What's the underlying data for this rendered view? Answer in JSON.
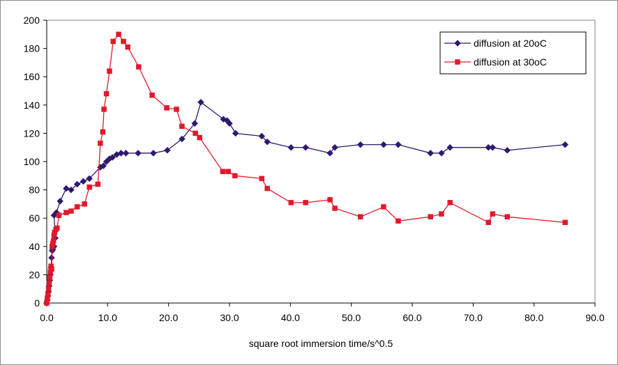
{
  "chart_data": {
    "type": "scatter",
    "title": "",
    "xlabel": "square root immersion time/s^0.5",
    "ylabel": "",
    "xlim": [
      0,
      90
    ],
    "ylim": [
      0,
      200
    ],
    "x_ticks": [
      "0.0",
      "10.0",
      "20.0",
      "30.0",
      "40.0",
      "50.0",
      "60.0",
      "70.0",
      "80.0",
      "90.0"
    ],
    "y_ticks": [
      "0",
      "20",
      "40",
      "60",
      "80",
      "100",
      "120",
      "140",
      "160",
      "180",
      "200"
    ],
    "grid": false,
    "legend_position": "top-right",
    "series": [
      {
        "name": "diffusion at 20oC",
        "color": "#2e1a6e",
        "marker": "diamond",
        "points": [
          [
            0,
            0
          ],
          [
            0.1,
            2
          ],
          [
            0.2,
            5
          ],
          [
            0.3,
            8
          ],
          [
            0.4,
            12
          ],
          [
            0.5,
            16
          ],
          [
            0.6,
            20
          ],
          [
            0.7,
            25
          ],
          [
            0.8,
            32
          ],
          [
            0.9,
            37
          ],
          [
            1.0,
            38
          ],
          [
            1.2,
            40
          ],
          [
            1.4,
            46
          ],
          [
            1.2,
            62
          ],
          [
            1.6,
            64
          ],
          [
            2.2,
            72
          ],
          [
            3.2,
            81
          ],
          [
            4,
            80
          ],
          [
            5,
            84
          ],
          [
            6,
            86
          ],
          [
            7,
            88
          ],
          [
            8.8,
            96
          ],
          [
            9.3,
            97
          ],
          [
            9.8,
            100
          ],
          [
            10.3,
            102
          ],
          [
            10.8,
            103
          ],
          [
            11.5,
            105
          ],
          [
            12.2,
            106
          ],
          [
            13,
            106
          ],
          [
            15,
            106
          ],
          [
            17.5,
            106
          ],
          [
            19.8,
            108
          ],
          [
            22.2,
            116
          ],
          [
            24.3,
            127
          ],
          [
            25.3,
            142
          ],
          [
            29,
            130
          ],
          [
            29.6,
            129
          ],
          [
            30,
            127
          ],
          [
            31,
            120
          ],
          [
            35.3,
            118
          ],
          [
            36.2,
            114
          ],
          [
            40.1,
            110
          ],
          [
            42.5,
            110
          ],
          [
            46.5,
            106
          ],
          [
            47.3,
            110
          ],
          [
            51.5,
            112
          ],
          [
            55.3,
            112
          ],
          [
            57.7,
            112
          ],
          [
            63,
            106
          ],
          [
            64.8,
            106
          ],
          [
            66.2,
            110
          ],
          [
            72.5,
            110
          ],
          [
            73.2,
            110
          ],
          [
            75.6,
            108
          ],
          [
            85.1,
            112
          ]
        ]
      },
      {
        "name": "diffusion at 30oC",
        "color": "#e0192b",
        "marker": "square",
        "points": [
          [
            0,
            0
          ],
          [
            0.1,
            3
          ],
          [
            0.2,
            6
          ],
          [
            0.3,
            10
          ],
          [
            0.4,
            14
          ],
          [
            0.5,
            18
          ],
          [
            0.6,
            22
          ],
          [
            0.7,
            26
          ],
          [
            0.8,
            24
          ],
          [
            0.9,
            40
          ],
          [
            1.0,
            42
          ],
          [
            1.1,
            44
          ],
          [
            1.2,
            48
          ],
          [
            1.3,
            50
          ],
          [
            1.5,
            52
          ],
          [
            1.7,
            53
          ],
          [
            2.0,
            62
          ],
          [
            3.2,
            64
          ],
          [
            4,
            65
          ],
          [
            5,
            68
          ],
          [
            6.2,
            70
          ],
          [
            7,
            82
          ],
          [
            8.4,
            84
          ],
          [
            8.8,
            113
          ],
          [
            9.2,
            121
          ],
          [
            9.4,
            137
          ],
          [
            9.8,
            148
          ],
          [
            10.3,
            164
          ],
          [
            10.9,
            185
          ],
          [
            11.8,
            190
          ],
          [
            12.6,
            185
          ],
          [
            13.3,
            181
          ],
          [
            15.1,
            167
          ],
          [
            17.3,
            147
          ],
          [
            19.7,
            138
          ],
          [
            21.3,
            137
          ],
          [
            22.2,
            125
          ],
          [
            24.4,
            120
          ],
          [
            25.1,
            117
          ],
          [
            28.9,
            93
          ],
          [
            29.8,
            93
          ],
          [
            30.9,
            90
          ],
          [
            35.3,
            88
          ],
          [
            36.2,
            81
          ],
          [
            40.1,
            71
          ],
          [
            42.5,
            71
          ],
          [
            46.5,
            73
          ],
          [
            47.3,
            67
          ],
          [
            51.5,
            61
          ],
          [
            55.3,
            68
          ],
          [
            57.7,
            58
          ],
          [
            63,
            61
          ],
          [
            64.8,
            63
          ],
          [
            66.2,
            71
          ],
          [
            72.5,
            57
          ],
          [
            73.2,
            63
          ],
          [
            75.6,
            61
          ],
          [
            85.1,
            57
          ]
        ]
      }
    ]
  }
}
